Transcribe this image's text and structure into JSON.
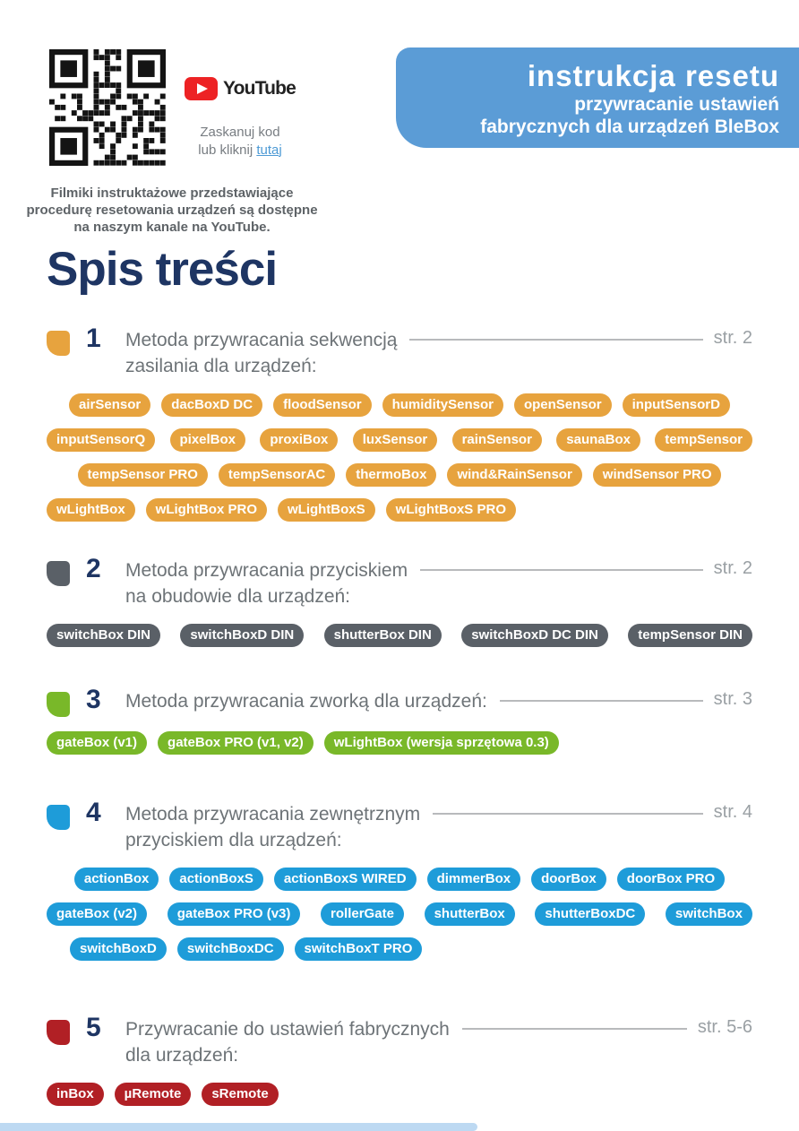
{
  "header": {
    "youtube_label": "YouTube",
    "qr_caption_line1": "Zaskanuj kod",
    "qr_caption_line2": "lub kliknij",
    "qr_caption_link": "tutaj",
    "note": "Filmiki instruktażowe przedstawiające\nprocedurę resetowania urządzeń są dostępne\nna naszym kanale na YouTube.",
    "banner": {
      "title": "instrukcja resetu",
      "subtitle_line1": "przywracanie ustawień",
      "subtitle_line2": "fabrycznych dla urządzeń BleBox",
      "bg_color": "#5b9cd6"
    }
  },
  "page_title": "Spis treści",
  "colors": {
    "navy_text": "#1e3563",
    "section_title_gray": "#6d7377",
    "page_label_gray": "#9aa0a4",
    "youtube_red": "#ed2224",
    "link_blue": "#4d9ad5",
    "footer_bar": "#bdd9f2"
  },
  "sections": [
    {
      "number": "1",
      "title": "Metoda przywracania sekwencją\nzasilania dla urządzeń:",
      "page": "str. 2",
      "color": "#e7a33e",
      "pill_rows": [
        {
          "align": "center",
          "pills": [
            "airSensor",
            "dacBoxD DC",
            "floodSensor",
            "humiditySensor",
            "openSensor",
            "inputSensorD"
          ]
        },
        {
          "align": "justify",
          "pills": [
            "inputSensorQ",
            "pixelBox",
            "proxiBox",
            "luxSensor",
            "rainSensor",
            "saunaBox",
            "tempSensor"
          ]
        },
        {
          "align": "center",
          "pills": [
            "tempSensor PRO",
            "tempSensorAC",
            "thermoBox",
            "wind&RainSensor",
            "windSensor PRO"
          ]
        },
        {
          "align": "left",
          "pills": [
            "wLightBox",
            "wLightBox PRO",
            "wLightBoxS",
            "wLightBoxS PRO"
          ]
        }
      ]
    },
    {
      "number": "2",
      "title": "Metoda przywracania przyciskiem\nna obudowie dla urządzeń:",
      "page": "str. 2",
      "color": "#5a6067",
      "pill_rows": [
        {
          "align": "justify",
          "pills": [
            "switchBox DIN",
            "switchBoxD DIN",
            "shutterBox DIN",
            "switchBoxD DC DIN",
            "tempSensor DIN"
          ]
        }
      ]
    },
    {
      "number": "3",
      "title": "Metoda przywracania zworką dla urządzeń:",
      "page": "str. 3",
      "color": "#79b829",
      "pill_rows": [
        {
          "align": "left",
          "pills": [
            "gateBox (v1)",
            "gateBox PRO (v1, v2)",
            "wLightBox (wersja sprzętowa 0.3)"
          ]
        }
      ]
    },
    {
      "number": "4",
      "title": "Metoda przywracania zewnętrznym\nprzyciskiem dla urządzeń:",
      "page": "str. 4",
      "color": "#1e9cd9",
      "pill_rows": [
        {
          "align": "center",
          "pills": [
            "actionBox",
            "actionBoxS",
            "actionBoxS WIRED",
            "dimmerBox",
            "doorBox",
            "doorBox PRO"
          ]
        },
        {
          "align": "justify",
          "pills": [
            "gateBox (v2)",
            "gateBox PRO (v3)",
            "rollerGate",
            "shutterBox",
            "shutterBoxDC",
            "switchBox"
          ]
        },
        {
          "align": "left-indent",
          "pills": [
            "switchBoxD",
            "switchBoxDC",
            "switchBoxT PRO"
          ]
        }
      ]
    },
    {
      "number": "5",
      "title": "Przywracanie do ustawień fabrycznych\ndla urządzeń:",
      "page": "str. 5-6",
      "color": "#b12025",
      "pill_rows": [
        {
          "align": "left",
          "pills": [
            "inBox",
            "µRemote",
            "sRemote"
          ]
        }
      ]
    }
  ]
}
